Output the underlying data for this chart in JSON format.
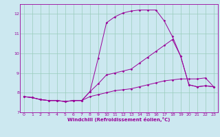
{
  "xlabel": "Windchill (Refroidissement éolien,°C)",
  "ylabel": "",
  "background_color": "#cce8f0",
  "grid_color": "#99ccbb",
  "line_color": "#990099",
  "xlim": [
    -0.5,
    23.5
  ],
  "ylim": [
    7.0,
    12.5
  ],
  "xticks": [
    0,
    1,
    2,
    3,
    4,
    5,
    6,
    7,
    8,
    9,
    10,
    11,
    12,
    13,
    14,
    15,
    16,
    17,
    18,
    19,
    20,
    21,
    22,
    23
  ],
  "yticks": [
    7,
    8,
    9,
    10,
    11,
    12
  ],
  "line1_x": [
    0,
    1,
    2,
    3,
    4,
    5,
    6,
    7,
    8,
    9,
    10,
    11,
    12,
    13,
    14,
    15,
    16,
    17,
    18,
    19,
    20,
    21,
    22,
    23
  ],
  "line1_y": [
    7.8,
    7.75,
    7.65,
    7.6,
    7.6,
    7.55,
    7.6,
    7.6,
    8.05,
    8.45,
    8.9,
    9.0,
    9.1,
    9.2,
    9.5,
    9.8,
    10.1,
    10.4,
    10.7,
    9.85,
    8.4,
    8.3,
    8.35,
    8.3
  ],
  "line2_x": [
    0,
    1,
    2,
    3,
    4,
    5,
    6,
    7,
    8,
    9,
    10,
    11,
    12,
    13,
    14,
    15,
    16,
    17,
    18,
    19,
    20,
    21,
    22,
    23
  ],
  "line2_y": [
    7.8,
    7.75,
    7.65,
    7.6,
    7.6,
    7.55,
    7.6,
    7.6,
    8.05,
    9.75,
    11.55,
    11.85,
    12.05,
    12.15,
    12.2,
    12.2,
    12.2,
    11.65,
    10.85,
    9.85,
    8.4,
    8.3,
    8.35,
    8.3
  ],
  "line3_x": [
    0,
    1,
    2,
    3,
    4,
    5,
    6,
    7,
    8,
    9,
    10,
    11,
    12,
    13,
    14,
    15,
    16,
    17,
    18,
    19,
    20,
    21,
    22,
    23
  ],
  "line3_y": [
    7.8,
    7.75,
    7.65,
    7.6,
    7.6,
    7.55,
    7.6,
    7.6,
    7.8,
    7.9,
    8.0,
    8.1,
    8.15,
    8.2,
    8.3,
    8.4,
    8.5,
    8.6,
    8.65,
    8.7,
    8.7,
    8.7,
    8.75,
    8.3
  ],
  "tick_fontsize": 4.5,
  "xlabel_fontsize": 5.0,
  "marker_size": 1.8,
  "line_width": 0.7
}
